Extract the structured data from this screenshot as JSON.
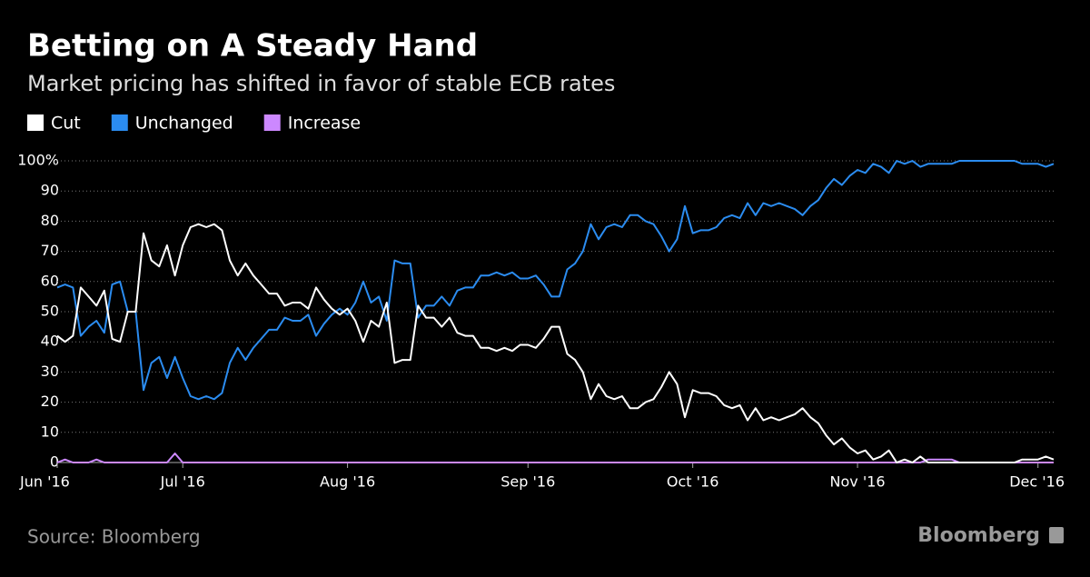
{
  "chart_data": {
    "type": "line",
    "title": "Betting on A Steady Hand",
    "subtitle": "Market pricing has shifted in favor of stable ECB rates",
    "source": "Source: Bloomberg",
    "brand": "Bloomberg",
    "categories": [
      "Jun '16",
      null,
      null,
      null,
      null,
      null,
      null,
      null,
      null,
      null,
      null,
      null,
      null,
      null,
      null,
      null,
      "Jul '16",
      null,
      null,
      null,
      null,
      null,
      null,
      null,
      null,
      null,
      null,
      null,
      null,
      null,
      null,
      null,
      null,
      null,
      null,
      null,
      null,
      "Aug '16",
      null,
      null,
      null,
      null,
      null,
      null,
      null,
      null,
      null,
      null,
      null,
      null,
      null,
      null,
      null,
      null,
      null,
      null,
      null,
      null,
      null,
      null,
      "Sep '16",
      null,
      null,
      null,
      null,
      null,
      null,
      null,
      null,
      null,
      null,
      null,
      null,
      null,
      null,
      null,
      null,
      null,
      null,
      null,
      null,
      "Oct '16",
      null,
      null,
      null,
      null,
      null,
      null,
      null,
      null,
      null,
      null,
      null,
      null,
      null,
      null,
      null,
      null,
      null,
      null,
      null,
      null,
      "Nov '16",
      null,
      null,
      null,
      null,
      null,
      null,
      null,
      null,
      null,
      null,
      null,
      null,
      null,
      null,
      null,
      null,
      null,
      null,
      null,
      null,
      null,
      null,
      "Dec '16",
      null,
      null
    ],
    "series": [
      {
        "name": "Cut",
        "color": "#ffffff",
        "values": [
          42,
          40,
          42,
          58,
          55,
          52,
          57,
          41,
          40,
          50,
          50,
          76,
          67,
          65,
          72,
          62,
          72,
          78,
          79,
          78,
          79,
          77,
          67,
          62,
          66,
          62,
          59,
          56,
          56,
          52,
          53,
          53,
          51,
          58,
          54,
          51,
          49,
          51,
          47,
          40,
          47,
          45,
          53,
          33,
          34,
          34,
          52,
          48,
          48,
          45,
          48,
          43,
          42,
          42,
          38,
          38,
          37,
          38,
          37,
          39,
          39,
          38,
          41,
          45,
          45,
          36,
          34,
          30,
          21,
          26,
          22,
          21,
          22,
          18,
          18,
          20,
          21,
          25,
          30,
          26,
          15,
          24,
          23,
          23,
          22,
          19,
          18,
          19,
          14,
          18,
          14,
          15,
          14,
          15,
          16,
          18,
          15,
          13,
          9,
          6,
          8,
          5,
          3,
          4,
          1,
          2,
          4,
          0,
          1,
          0,
          2,
          0,
          0,
          0,
          0,
          0,
          0,
          0,
          0,
          0,
          0,
          0,
          0,
          1,
          1,
          1,
          2,
          1
        ]
      },
      {
        "name": "Unchanged",
        "color": "#2b8cf0",
        "values": [
          58,
          59,
          58,
          42,
          45,
          47,
          43,
          59,
          60,
          50,
          50,
          24,
          33,
          35,
          28,
          35,
          28,
          22,
          21,
          22,
          21,
          23,
          33,
          38,
          34,
          38,
          41,
          44,
          44,
          48,
          47,
          47,
          49,
          42,
          46,
          49,
          51,
          49,
          53,
          60,
          53,
          55,
          47,
          67,
          66,
          66,
          48,
          52,
          52,
          55,
          52,
          57,
          58,
          58,
          62,
          62,
          63,
          62,
          63,
          61,
          61,
          62,
          59,
          55,
          55,
          64,
          66,
          70,
          79,
          74,
          78,
          79,
          78,
          82,
          82,
          80,
          79,
          75,
          70,
          74,
          85,
          76,
          77,
          77,
          78,
          81,
          82,
          81,
          86,
          82,
          86,
          85,
          86,
          85,
          84,
          82,
          85,
          87,
          91,
          94,
          92,
          95,
          97,
          96,
          99,
          98,
          96,
          100,
          99,
          100,
          98,
          99,
          99,
          99,
          99,
          100,
          100,
          100,
          100,
          100,
          100,
          100,
          100,
          99,
          99,
          99,
          98,
          99
        ]
      },
      {
        "name": "Increase",
        "color": "#cc88ff",
        "values": [
          0,
          1,
          0,
          0,
          0,
          1,
          0,
          0,
          0,
          0,
          0,
          0,
          0,
          0,
          0,
          3,
          0,
          0,
          0,
          0,
          0,
          0,
          0,
          0,
          0,
          0,
          0,
          0,
          0,
          0,
          0,
          0,
          0,
          0,
          0,
          0,
          0,
          0,
          0,
          0,
          0,
          0,
          0,
          0,
          0,
          0,
          0,
          0,
          0,
          0,
          0,
          0,
          0,
          0,
          0,
          0,
          0,
          0,
          0,
          0,
          0,
          0,
          0,
          0,
          0,
          0,
          0,
          0,
          0,
          0,
          0,
          0,
          0,
          0,
          0,
          0,
          0,
          0,
          0,
          0,
          0,
          0,
          0,
          0,
          0,
          0,
          0,
          0,
          0,
          0,
          0,
          0,
          0,
          0,
          0,
          0,
          0,
          0,
          0,
          0,
          0,
          0,
          0,
          0,
          0,
          0,
          0,
          0,
          0,
          0,
          0,
          1,
          1,
          1,
          1,
          0,
          0,
          0,
          0,
          0,
          0,
          0,
          0,
          0,
          0,
          0,
          0,
          0
        ]
      }
    ],
    "ylim": [
      0,
      100
    ],
    "yticks": [
      0,
      10,
      20,
      30,
      40,
      50,
      60,
      70,
      80,
      90,
      {
        "value": 100,
        "label": "100%"
      }
    ],
    "grid": true
  }
}
